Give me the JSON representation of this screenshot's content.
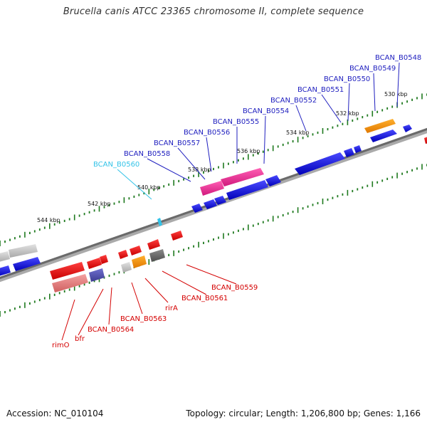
{
  "title": "Brucella canis ATCC 23365 chromosome II, complete sequence",
  "footer": {
    "accession": "Accession: NC_010104",
    "summary": "Topology: circular; Length: 1,206,800 bp; Genes: 1,166"
  },
  "colors": {
    "plus_label": "#1f1fbf",
    "minus_label": "#d40000",
    "highlight_label": "#33c3e8",
    "tick": "#1f7a1f",
    "backbone": "#777777"
  },
  "scale_labels": [
    "530 kbp",
    "532 kbp",
    "534 kbp",
    "536 kbp",
    "538 kbp",
    "540 kbp",
    "542 kbp",
    "544 kbp"
  ],
  "plus_genes": [
    "BCAN_B0548",
    "BCAN_B0549",
    "BCAN_B0550",
    "BCAN_B0551",
    "BCAN_B0552",
    "BCAN_B0554",
    "BCAN_B0555",
    "BCAN_B0556",
    "BCAN_B0557",
    "BCAN_B0558",
    "BCAN_B0560"
  ],
  "minus_genes": [
    "BCAN_B0559",
    "BCAN_B0561",
    "rirA",
    "BCAN_B0563",
    "BCAN_B0564",
    "bfr",
    "rimO"
  ],
  "highlighted_gene": "BCAN_B0560"
}
